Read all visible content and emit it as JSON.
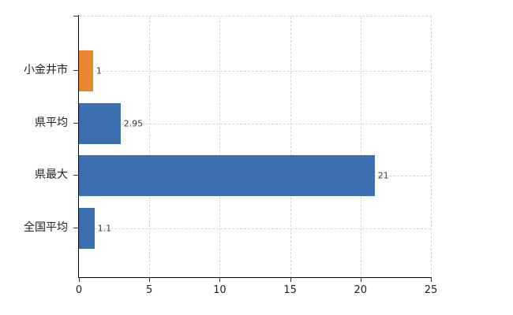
{
  "chart_data": {
    "type": "bar",
    "orientation": "horizontal",
    "categories": [
      "小金井市",
      "県平均",
      "県最大",
      "全国平均"
    ],
    "values": [
      1,
      2.95,
      21,
      1.1
    ],
    "value_labels": [
      "1",
      "2.95",
      "21",
      "1.1"
    ],
    "bar_colors": [
      "#e8872e",
      "#3d6fb0",
      "#3d6fb0",
      "#3d6fb0"
    ],
    "xlim": [
      0,
      25
    ],
    "x_ticks": [
      0,
      5,
      10,
      15,
      20,
      25
    ],
    "x_tick_labels": [
      "0",
      "5",
      "10",
      "15",
      "20",
      "25"
    ],
    "grid": true,
    "legend": false,
    "colors": {
      "background": "#ffffff",
      "axis": "#000000",
      "gridline": "#d4d4d4",
      "tick": "#333333",
      "label": "#222222",
      "value_label": "#3a3a3a",
      "orange_series": "#e8872e",
      "blue_series": "#3d6fb0"
    }
  }
}
